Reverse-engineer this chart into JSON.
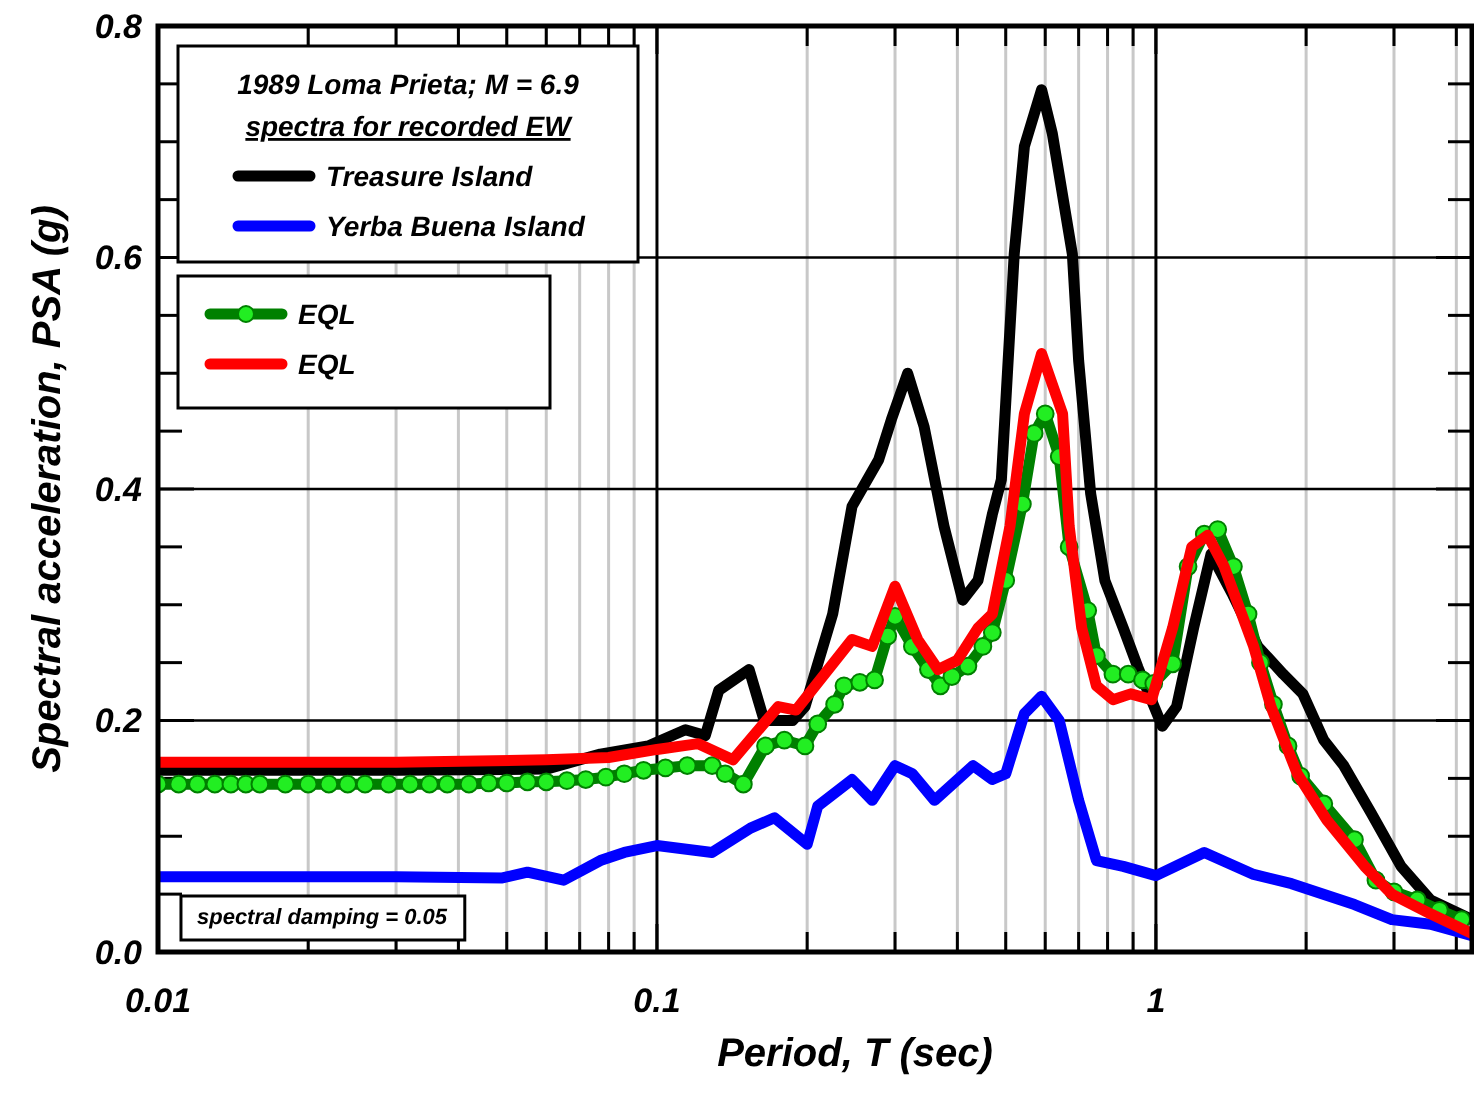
{
  "chart_data": {
    "type": "line",
    "xlabel": "Period, T (sec)",
    "ylabel": "Spectral acceleration, PSA (g)",
    "legend_title": "1989 Loma Prieta; M = 6.9\nspectra for recorded EW",
    "legend": "top left",
    "log": "x",
    "grid": true,
    "line_style": "solid",
    "xlim": [
      0.01,
      4.3
    ],
    "ylim": [
      0,
      0.8
    ],
    "xticks": [
      0.01,
      {
        "value": 0.02,
        "label": null
      },
      {
        "value": 0.03,
        "label": null
      },
      {
        "value": 0.04,
        "label": null
      },
      {
        "value": 0.05,
        "label": null
      },
      {
        "value": 0.06,
        "label": null
      },
      {
        "value": 0.07,
        "label": null
      },
      {
        "value": 0.08,
        "label": null
      },
      {
        "value": 0.09,
        "label": null
      },
      0.1,
      {
        "value": 0.2,
        "label": null
      },
      {
        "value": 0.3,
        "label": null
      },
      {
        "value": 0.4,
        "label": null
      },
      {
        "value": 0.5,
        "label": null
      },
      {
        "value": 0.6,
        "label": null
      },
      {
        "value": 0.7,
        "label": null
      },
      {
        "value": 0.8,
        "label": null
      },
      {
        "value": 0.9,
        "label": null
      },
      1,
      {
        "value": 2,
        "label": null
      },
      {
        "value": 3,
        "label": null
      },
      {
        "value": 4,
        "label": null
      }
    ],
    "yticks": [
      {
        "value": 0,
        "label": "0.0"
      },
      {
        "value": 0.05,
        "label": null
      },
      {
        "value": 0.1,
        "label": null
      },
      {
        "value": 0.15,
        "label": null
      },
      0.2,
      {
        "value": 0.25,
        "label": null
      },
      {
        "value": 0.3,
        "label": null
      },
      {
        "value": 0.35,
        "label": null
      },
      0.4,
      {
        "value": 0.45,
        "label": null
      },
      {
        "value": 0.5,
        "label": null
      },
      {
        "value": 0.55,
        "label": null
      },
      0.6,
      {
        "value": 0.65,
        "label": null
      },
      {
        "value": 0.7,
        "label": null
      },
      {
        "value": 0.75,
        "label": null
      },
      0.8
    ],
    "annotations": [
      "spectral damping = 0.05"
    ],
    "series": [
      {
        "name": "Treasure Island",
        "color": "#000000",
        "marker": "none",
        "x": [
          0.01,
          0.03,
          0.06,
          0.077,
          0.096,
          0.114,
          0.125,
          0.133,
          0.153,
          0.164,
          0.187,
          0.198,
          0.225,
          0.246,
          0.278,
          0.295,
          0.318,
          0.343,
          0.376,
          0.41,
          0.44,
          0.47,
          0.49,
          0.52,
          0.545,
          0.59,
          0.62,
          0.68,
          0.7,
          0.74,
          0.79,
          0.86,
          0.92,
          1.03,
          1.1,
          1.19,
          1.29,
          1.42,
          1.6,
          1.8,
          1.97,
          2.17,
          2.38,
          2.7,
          3.1,
          3.55,
          4.3
        ],
        "values": [
          0.157,
          0.157,
          0.158,
          0.171,
          0.178,
          0.192,
          0.187,
          0.226,
          0.244,
          0.2,
          0.2,
          0.212,
          0.292,
          0.385,
          0.425,
          0.46,
          0.5,
          0.454,
          0.368,
          0.304,
          0.321,
          0.378,
          0.408,
          0.603,
          0.696,
          0.745,
          0.707,
          0.603,
          0.511,
          0.396,
          0.321,
          0.28,
          0.246,
          0.195,
          0.212,
          0.28,
          0.344,
          0.31,
          0.264,
          0.24,
          0.223,
          0.183,
          0.161,
          0.12,
          0.074,
          0.045,
          0.028
        ]
      },
      {
        "name": "Yerba Buena Island",
        "color": "#0000ff",
        "marker": "none",
        "x": [
          0.01,
          0.03,
          0.049,
          0.055,
          0.065,
          0.077,
          0.086,
          0.1,
          0.129,
          0.154,
          0.172,
          0.2,
          0.21,
          0.246,
          0.27,
          0.3,
          0.325,
          0.36,
          0.43,
          0.47,
          0.5,
          0.545,
          0.59,
          0.64,
          0.7,
          0.76,
          0.86,
          1.0,
          1.25,
          1.57,
          1.87,
          2.5,
          2.97,
          3.55,
          4.3
        ],
        "values": [
          0.065,
          0.065,
          0.064,
          0.069,
          0.062,
          0.079,
          0.086,
          0.092,
          0.086,
          0.107,
          0.116,
          0.093,
          0.126,
          0.149,
          0.131,
          0.161,
          0.154,
          0.131,
          0.161,
          0.149,
          0.154,
          0.206,
          0.221,
          0.2,
          0.131,
          0.079,
          0.074,
          0.066,
          0.086,
          0.067,
          0.059,
          0.041,
          0.028,
          0.024,
          0.014
        ]
      },
      {
        "name": "EQL",
        "color": "#008000",
        "marker": "circle",
        "x": [
          0.01,
          0.011,
          0.012,
          0.013,
          0.014,
          0.015,
          0.016,
          0.018,
          0.02,
          0.022,
          0.024,
          0.026,
          0.029,
          0.032,
          0.035,
          0.038,
          0.042,
          0.046,
          0.05,
          0.055,
          0.06,
          0.066,
          0.072,
          0.079,
          0.086,
          0.094,
          0.104,
          0.115,
          0.129,
          0.137,
          0.149,
          0.165,
          0.18,
          0.198,
          0.21,
          0.227,
          0.237,
          0.255,
          0.273,
          0.29,
          0.3,
          0.325,
          0.35,
          0.37,
          0.39,
          0.42,
          0.45,
          0.47,
          0.5,
          0.54,
          0.57,
          0.6,
          0.64,
          0.67,
          0.73,
          0.76,
          0.82,
          0.88,
          0.94,
          0.99,
          1.08,
          1.16,
          1.25,
          1.33,
          1.43,
          1.53,
          1.62,
          1.72,
          1.84,
          1.95,
          2.17,
          2.5,
          2.76,
          3.0,
          3.34,
          3.7,
          4.1
        ],
        "values": [
          0.145,
          0.145,
          0.145,
          0.145,
          0.145,
          0.145,
          0.145,
          0.145,
          0.145,
          0.145,
          0.145,
          0.145,
          0.145,
          0.145,
          0.145,
          0.145,
          0.145,
          0.146,
          0.146,
          0.147,
          0.147,
          0.148,
          0.149,
          0.151,
          0.154,
          0.157,
          0.159,
          0.161,
          0.161,
          0.154,
          0.145,
          0.178,
          0.183,
          0.178,
          0.197,
          0.214,
          0.23,
          0.233,
          0.235,
          0.273,
          0.29,
          0.264,
          0.244,
          0.23,
          0.238,
          0.247,
          0.264,
          0.276,
          0.321,
          0.387,
          0.448,
          0.465,
          0.428,
          0.35,
          0.295,
          0.256,
          0.24,
          0.24,
          0.235,
          0.232,
          0.249,
          0.333,
          0.361,
          0.365,
          0.333,
          0.292,
          0.25,
          0.214,
          0.178,
          0.152,
          0.128,
          0.097,
          0.062,
          0.052,
          0.045,
          0.036,
          0.028
        ]
      },
      {
        "name": "EQL",
        "color": "#ff0000",
        "marker": "none",
        "x": [
          0.01,
          0.03,
          0.06,
          0.08,
          0.1,
          0.121,
          0.142,
          0.175,
          0.19,
          0.246,
          0.27,
          0.3,
          0.333,
          0.366,
          0.4,
          0.44,
          0.47,
          0.51,
          0.545,
          0.59,
          0.65,
          0.67,
          0.71,
          0.76,
          0.82,
          0.89,
          0.98,
          1.08,
          1.18,
          1.27,
          1.37,
          1.57,
          1.7,
          1.92,
          2.2,
          2.62,
          2.97,
          3.55,
          4.3
        ],
        "values": [
          0.164,
          0.164,
          0.166,
          0.168,
          0.175,
          0.18,
          0.166,
          0.212,
          0.209,
          0.27,
          0.264,
          0.316,
          0.27,
          0.244,
          0.252,
          0.28,
          0.292,
          0.368,
          0.465,
          0.517,
          0.465,
          0.368,
          0.28,
          0.23,
          0.218,
          0.223,
          0.218,
          0.28,
          0.35,
          0.36,
          0.333,
          0.264,
          0.212,
          0.154,
          0.114,
          0.074,
          0.05,
          0.033,
          0.016
        ]
      }
    ]
  }
}
